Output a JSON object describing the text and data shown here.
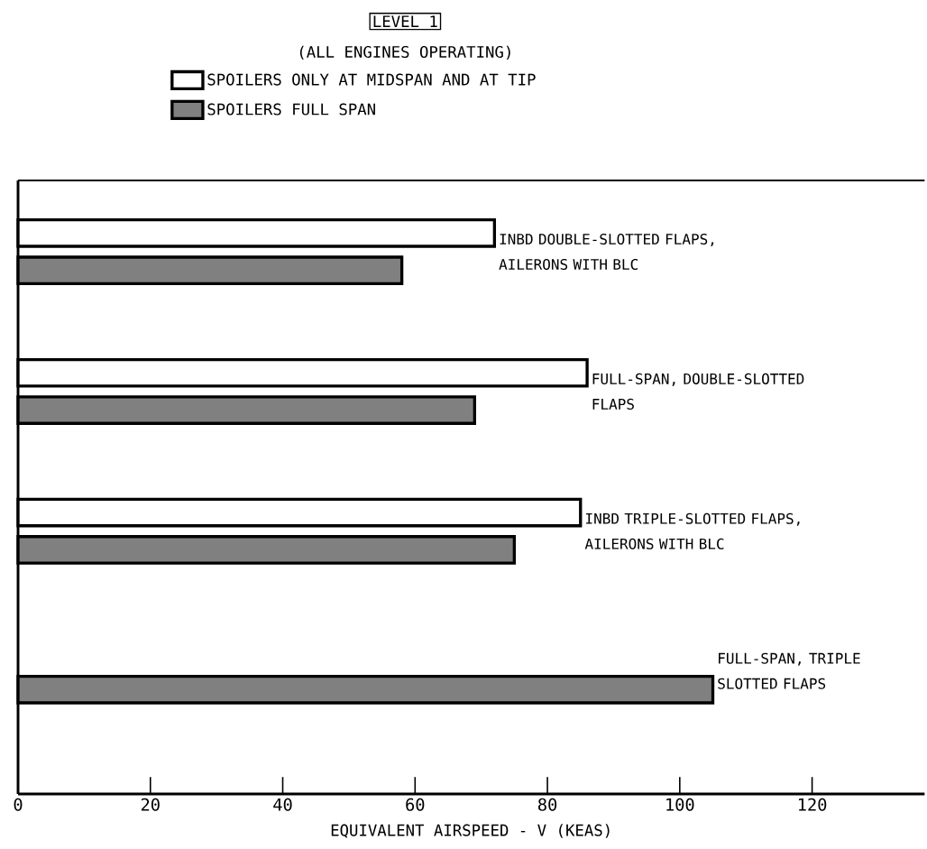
{
  "chart_data": {
    "type": "bar",
    "orientation": "horizontal",
    "title": "LEVEL 1",
    "subtitle": "(ALL ENGINES OPERATING)",
    "categories": [
      "INBD DOUBLE-SLOTTED FLAPS, AILERONS WITH BLC",
      "FULL-SPAN, DOUBLE-SLOTTED FLAPS",
      "INBD TRIPLE-SLOTTED FLAPS, AILERONS WITH BLC",
      "FULL-SPAN, TRIPLE SLOTTED FLAPS"
    ],
    "series": [
      {
        "name": "SPOILERS ONLY AT MIDSPAN AND AT TIP",
        "color": "#ffffff",
        "values": [
          72,
          86,
          85,
          null
        ]
      },
      {
        "name": "SPOILERS FULL SPAN",
        "color": "#808080",
        "values": [
          58,
          69,
          75,
          105
        ]
      }
    ],
    "xlabel": "EQUIVALENT AIRSPEED - V (KEAS)",
    "xlim": [
      0,
      137
    ],
    "xticks": [
      0,
      20,
      40,
      60,
      80,
      100,
      120
    ],
    "legend": "top",
    "grid": false
  }
}
